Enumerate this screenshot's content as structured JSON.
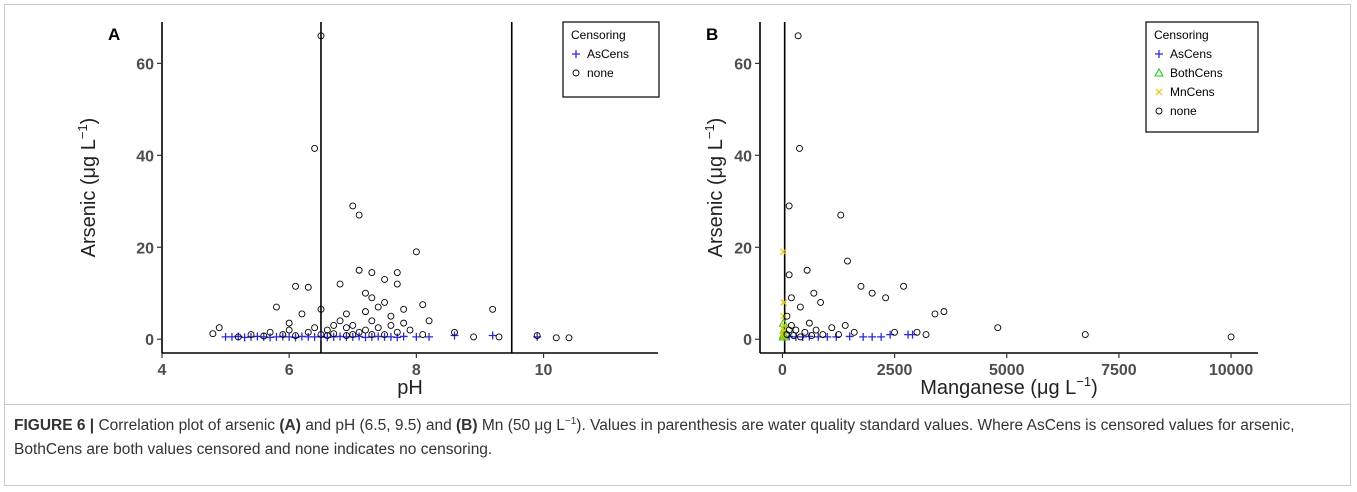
{
  "caption": {
    "figure_label": "FIGURE 6 |",
    "segments": [
      {
        "text": " Correlation plot of arsenic ",
        "bold": false
      },
      {
        "text": "(A)",
        "bold": true
      },
      {
        "text": " and pH (6.5, 9.5) and ",
        "bold": false
      },
      {
        "text": "(B)",
        "bold": true
      },
      {
        "text": " Mn (50 μg L",
        "bold": false
      },
      {
        "text": "−1",
        "sup": true
      },
      {
        "text": "). Values in parenthesis are water quality standard values. Where AsCens is censored values for arsenic, BothCens are both values censored and none indicates no censoring.",
        "bold": false
      }
    ]
  },
  "chart_data": [
    {
      "type": "scatter",
      "panel_label": "A",
      "xlabel": "pH",
      "ylabel": "Arsenic (μg L",
      "ylabel_sup": "−1",
      "ylabel_suffix": ")",
      "xlim": [
        4,
        11.8
      ],
      "ylim": [
        -3,
        69
      ],
      "xticks": [
        4,
        6,
        8,
        10
      ],
      "yticks": [
        0,
        20,
        40,
        60
      ],
      "grid": false,
      "reference_lines_x": [
        6.5,
        9.5
      ],
      "legend": {
        "title": "Censoring",
        "placement": "top-right",
        "entries": [
          "AsCens",
          "none"
        ]
      },
      "series": [
        {
          "name": "AsCens",
          "marker": "plus",
          "color": "#2b2bd6",
          "points": [
            [
              5.0,
              0.5
            ],
            [
              5.1,
              0.5
            ],
            [
              5.2,
              0.6
            ],
            [
              5.3,
              0.4
            ],
            [
              5.4,
              0.5
            ],
            [
              5.5,
              0.6
            ],
            [
              5.6,
              0.5
            ],
            [
              5.7,
              0.4
            ],
            [
              5.8,
              0.5
            ],
            [
              5.9,
              0.6
            ],
            [
              6.0,
              0.5
            ],
            [
              6.1,
              0.4
            ],
            [
              6.2,
              0.6
            ],
            [
              6.3,
              0.5
            ],
            [
              6.4,
              0.5
            ],
            [
              6.5,
              0.6
            ],
            [
              6.6,
              0.4
            ],
            [
              6.7,
              0.5
            ],
            [
              6.8,
              0.6
            ],
            [
              6.9,
              0.5
            ],
            [
              7.0,
              0.5
            ],
            [
              7.1,
              0.6
            ],
            [
              7.2,
              0.4
            ],
            [
              7.3,
              0.5
            ],
            [
              7.4,
              0.6
            ],
            [
              7.5,
              0.5
            ],
            [
              7.6,
              0.5
            ],
            [
              7.7,
              0.4
            ],
            [
              7.8,
              0.6
            ],
            [
              8.0,
              0.5
            ],
            [
              8.2,
              0.5
            ],
            [
              8.6,
              0.8
            ],
            [
              9.2,
              0.8
            ],
            [
              9.9,
              0.5
            ]
          ]
        },
        {
          "name": "none",
          "marker": "circle",
          "color": "#000000",
          "points": [
            [
              4.8,
              1.2
            ],
            [
              4.9,
              2.5
            ],
            [
              5.2,
              0.5
            ],
            [
              5.4,
              1.0
            ],
            [
              5.6,
              0.7
            ],
            [
              5.7,
              1.5
            ],
            [
              5.8,
              7.0
            ],
            [
              5.9,
              1.0
            ],
            [
              6.0,
              2.0
            ],
            [
              6.0,
              3.5
            ],
            [
              6.1,
              11.5
            ],
            [
              6.1,
              0.8
            ],
            [
              6.2,
              5.5
            ],
            [
              6.3,
              1.5
            ],
            [
              6.3,
              11.3
            ],
            [
              6.4,
              2.5
            ],
            [
              6.4,
              41.5
            ],
            [
              6.5,
              66.0
            ],
            [
              6.5,
              6.5
            ],
            [
              6.5,
              1.0
            ],
            [
              6.6,
              0.8
            ],
            [
              6.6,
              2.0
            ],
            [
              6.7,
              3.0
            ],
            [
              6.7,
              1.2
            ],
            [
              6.8,
              4.0
            ],
            [
              6.8,
              12.0
            ],
            [
              6.9,
              0.8
            ],
            [
              6.9,
              2.5
            ],
            [
              6.9,
              5.5
            ],
            [
              7.0,
              29.0
            ],
            [
              7.0,
              1.0
            ],
            [
              7.0,
              3.0
            ],
            [
              7.1,
              27.0
            ],
            [
              7.1,
              15.0
            ],
            [
              7.1,
              1.5
            ],
            [
              7.2,
              10.0
            ],
            [
              7.2,
              6.0
            ],
            [
              7.2,
              2.0
            ],
            [
              7.3,
              9.0
            ],
            [
              7.3,
              14.5
            ],
            [
              7.3,
              4.0
            ],
            [
              7.3,
              1.0
            ],
            [
              7.4,
              7.0
            ],
            [
              7.4,
              2.5
            ],
            [
              7.5,
              13.0
            ],
            [
              7.5,
              8.0
            ],
            [
              7.5,
              1.0
            ],
            [
              7.6,
              5.0
            ],
            [
              7.6,
              3.0
            ],
            [
              7.7,
              14.5
            ],
            [
              7.7,
              12.0
            ],
            [
              7.7,
              1.5
            ],
            [
              7.8,
              6.5
            ],
            [
              7.8,
              3.5
            ],
            [
              7.9,
              2.0
            ],
            [
              8.0,
              19.0
            ],
            [
              8.1,
              7.5
            ],
            [
              8.1,
              1.0
            ],
            [
              8.2,
              4.0
            ],
            [
              8.6,
              1.5
            ],
            [
              8.9,
              0.5
            ],
            [
              9.2,
              6.5
            ],
            [
              9.3,
              0.5
            ],
            [
              9.9,
              0.8
            ],
            [
              10.2,
              0.3
            ],
            [
              10.4,
              0.3
            ]
          ]
        }
      ]
    },
    {
      "type": "scatter",
      "panel_label": "B",
      "xlabel": "Manganese (μg L",
      "xlabel_sup": "−1",
      "xlabel_suffix": ")",
      "ylabel": "Arsenic (μg L",
      "ylabel_sup": "−1",
      "ylabel_suffix": ")",
      "xlim": [
        -500,
        10600
      ],
      "ylim": [
        -3,
        69
      ],
      "xticks": [
        0,
        2500,
        5000,
        7500,
        10000
      ],
      "yticks": [
        0,
        20,
        40,
        60
      ],
      "grid": false,
      "reference_lines_x": [
        50
      ],
      "legend": {
        "title": "Censoring",
        "placement": "top-right",
        "entries": [
          "AsCens",
          "BothCens",
          "MnCens",
          "none"
        ]
      },
      "series": [
        {
          "name": "AsCens",
          "marker": "plus",
          "color": "#2b2bd6",
          "points": [
            [
              50,
              0.5
            ],
            [
              150,
              0.6
            ],
            [
              300,
              0.5
            ],
            [
              450,
              0.5
            ],
            [
              600,
              0.6
            ],
            [
              800,
              0.5
            ],
            [
              1000,
              0.5
            ],
            [
              1200,
              0.5
            ],
            [
              1500,
              0.6
            ],
            [
              1800,
              0.5
            ],
            [
              2000,
              0.5
            ],
            [
              2200,
              0.5
            ],
            [
              2400,
              1.0
            ],
            [
              2800,
              1.0
            ],
            [
              2900,
              1.0
            ]
          ]
        },
        {
          "name": "BothCens",
          "marker": "triangle",
          "color": "#22cc22",
          "points": [
            [
              20,
              0.5
            ],
            [
              30,
              1.0
            ],
            [
              40,
              2.0
            ],
            [
              25,
              3.5
            ],
            [
              35,
              0.8
            ]
          ]
        },
        {
          "name": "MnCens",
          "marker": "cross",
          "color": "#e8c400",
          "points": [
            [
              20,
              19.0
            ],
            [
              30,
              8.0
            ],
            [
              25,
              5.0
            ],
            [
              35,
              3.0
            ],
            [
              40,
              2.0
            ],
            [
              20,
              1.0
            ],
            [
              30,
              0.5
            ]
          ]
        },
        {
          "name": "none",
          "marker": "circle",
          "color": "#000000",
          "points": [
            [
              350,
              66.0
            ],
            [
              380,
              41.5
            ],
            [
              150,
              29.0
            ],
            [
              1300,
              27.0
            ],
            [
              1450,
              17.0
            ],
            [
              150,
              14.0
            ],
            [
              1750,
              11.5
            ],
            [
              2000,
              10.0
            ],
            [
              2700,
              11.5
            ],
            [
              550,
              15.0
            ],
            [
              200,
              9.0
            ],
            [
              400,
              7.0
            ],
            [
              700,
              10.0
            ],
            [
              850,
              8.0
            ],
            [
              2300,
              9.0
            ],
            [
              3400,
              5.5
            ],
            [
              3600,
              6.0
            ],
            [
              4800,
              2.5
            ],
            [
              6750,
              1.0
            ],
            [
              10000,
              0.5
            ],
            [
              100,
              5.0
            ],
            [
              200,
              3.0
            ],
            [
              300,
              2.0
            ],
            [
              500,
              1.5
            ],
            [
              600,
              3.5
            ],
            [
              750,
              2.0
            ],
            [
              900,
              1.0
            ],
            [
              1100,
              2.5
            ],
            [
              1250,
              1.0
            ],
            [
              1400,
              3.0
            ],
            [
              1600,
              1.5
            ],
            [
              2500,
              1.5
            ],
            [
              3000,
              1.5
            ],
            [
              3200,
              1.0
            ],
            [
              100,
              1.0
            ],
            [
              250,
              0.8
            ],
            [
              400,
              0.5
            ],
            [
              650,
              0.8
            ],
            [
              150,
              2.0
            ]
          ]
        }
      ]
    }
  ]
}
